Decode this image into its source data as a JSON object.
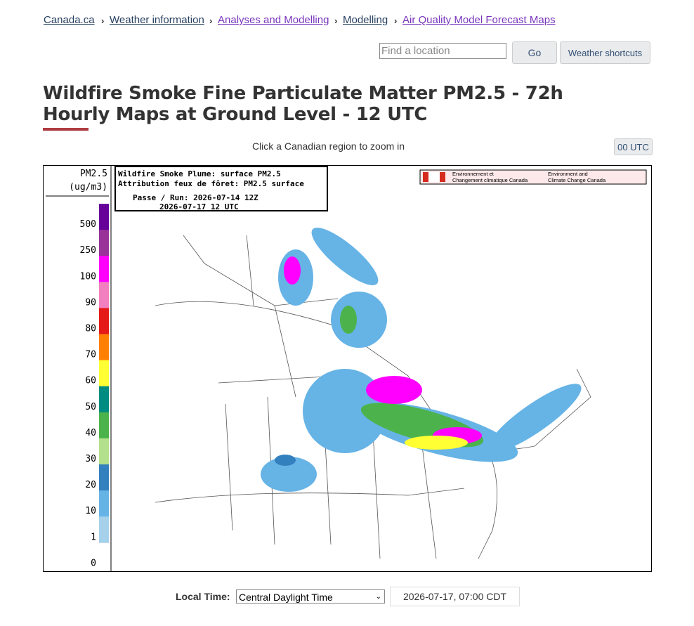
{
  "breadcrumbs": [
    "Canada.ca",
    "Weather information",
    "Analyses and Modelling",
    "Modelling",
    "Air Quality Model Forecast Maps"
  ],
  "search": {
    "placeholder": "Find a location",
    "button": "Go",
    "shortcuts": "Weather shortcuts"
  },
  "title": "Wildfire Smoke Fine Particulate Matter PM2.5 - 72h Hourly Maps at Ground Level - 12 UTC",
  "instruction": "Click a Canadian region to zoom in",
  "utc_button": "00 UTC",
  "map": {
    "legend_title": [
      "PM2.5",
      "(ug/m3)"
    ],
    "legend_labels": [
      "500",
      "250",
      "100",
      "90",
      "80",
      "70",
      "60",
      "50",
      "40",
      "30",
      "20",
      "10",
      "1",
      "0"
    ],
    "legend_colors": [
      "#660099",
      "#993399",
      "#ff00ff",
      "#f27fbf",
      "#e61919",
      "#ff8000",
      "#ffff33",
      "#008c80",
      "#4cb34c",
      "#b3e08c",
      "#3380bf",
      "#66b3e6",
      "#a6d1eb"
    ],
    "info": [
      "Wildfire Smoke Plume: surface PM2.5",
      "Attribution feux de fôret: PM2.5 surface",
      "Passe / Run: 2026-07-14 12Z",
      "2026-07-17 12 UTC"
    ],
    "agency": [
      "Environnement et",
      "Changement climatique Canada",
      "Environment and",
      "Climate Change Canada"
    ]
  },
  "local_time": {
    "label": "Local Time:",
    "selected": "Central Daylight Time",
    "value": "2026-07-17, 07:00 CDT"
  }
}
